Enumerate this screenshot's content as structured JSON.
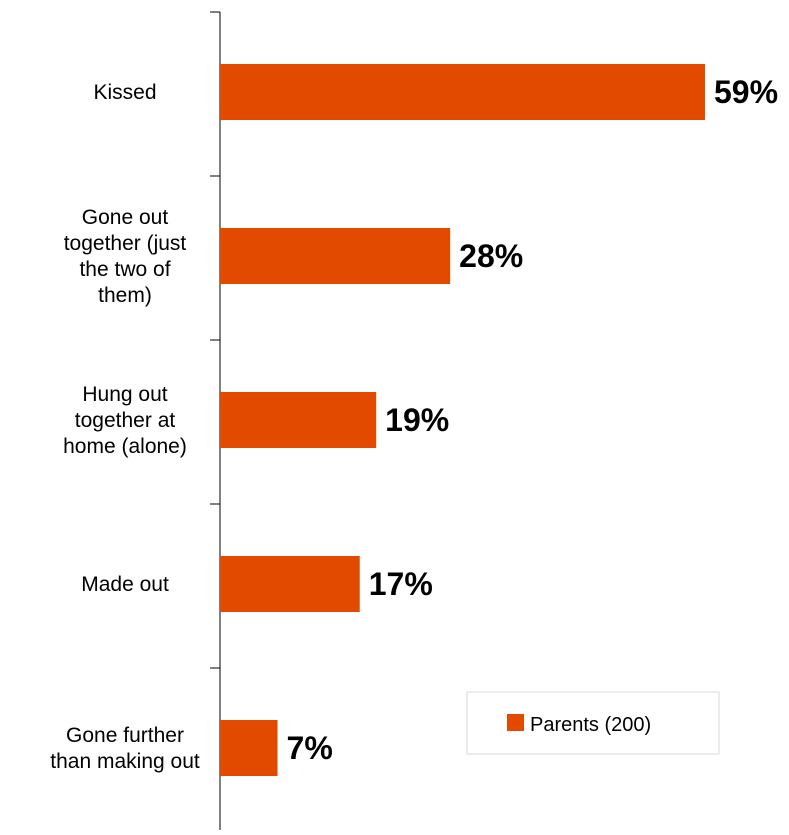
{
  "chart_data": {
    "type": "bar",
    "orientation": "horizontal",
    "categories": [
      "Kissed",
      "Gone out together (just the two of them)",
      "Hung out together at home (alone)",
      "Made out",
      "Gone further than making out"
    ],
    "category_label_lines": [
      [
        "Kissed"
      ],
      [
        "Gone out",
        "together (just",
        "the two of",
        "them)"
      ],
      [
        "Hung out",
        "together at",
        "home (alone)"
      ],
      [
        "Made out"
      ],
      [
        "Gone further",
        "than making out"
      ]
    ],
    "series": [
      {
        "name": "Parents (200)",
        "values": [
          59,
          28,
          19,
          17,
          7
        ],
        "color": "#E24A00"
      }
    ],
    "data_labels": [
      "59%",
      "28%",
      "19%",
      "17%",
      "7%"
    ],
    "xlim": [
      0,
      65
    ],
    "axis_visible": false,
    "grid": false,
    "legend": {
      "position": "bottom-right",
      "label": "Parents (200)"
    },
    "title": "",
    "xlabel": "",
    "ylabel": ""
  }
}
